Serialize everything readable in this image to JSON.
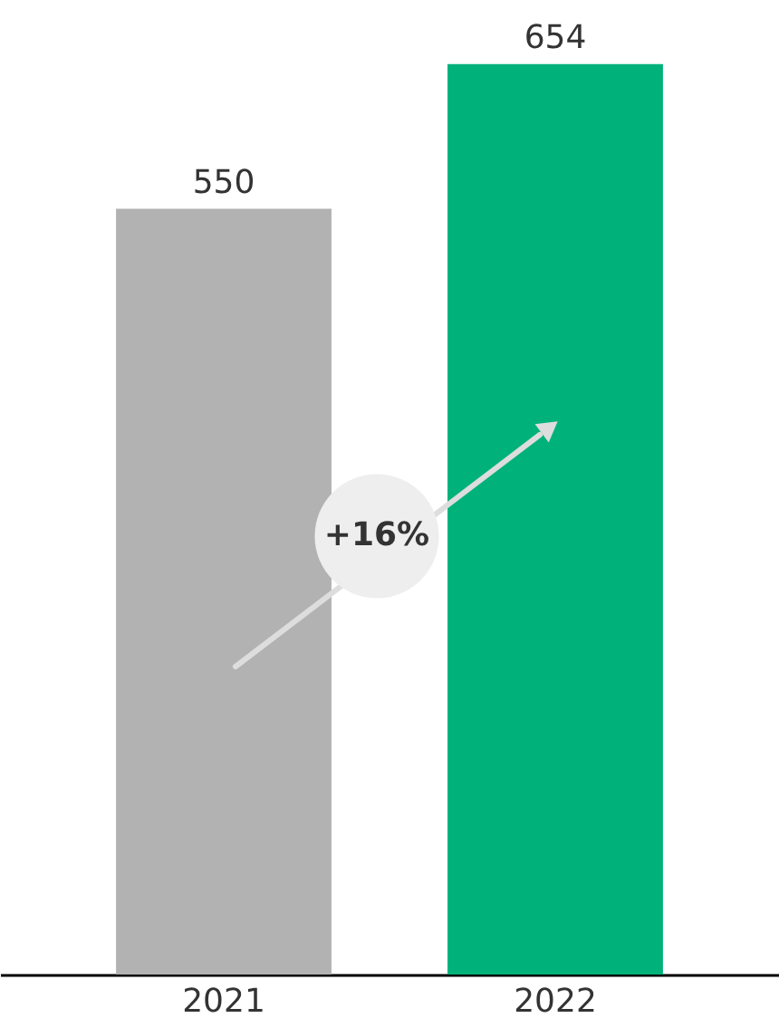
{
  "chart_data": {
    "type": "bar",
    "categories": [
      "2021",
      "2022"
    ],
    "values": [
      550,
      654
    ],
    "colors": [
      "#b2b2b2",
      "#00b27a"
    ],
    "ylim": [
      0,
      700
    ],
    "data_labels": true,
    "grid": false,
    "tick_labels": "x",
    "annotations": [
      "+16%"
    ]
  }
}
